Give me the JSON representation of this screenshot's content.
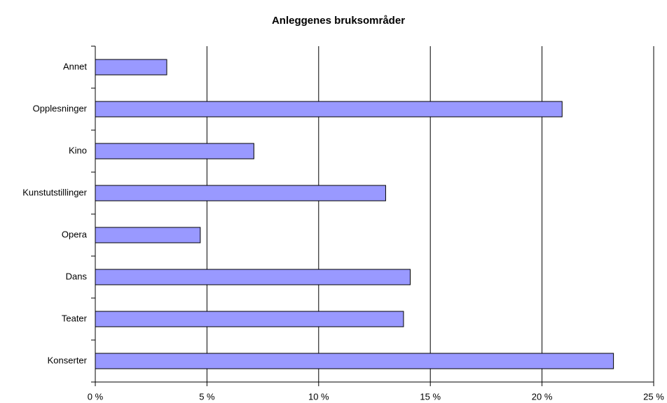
{
  "chart_data": {
    "type": "bar",
    "orientation": "horizontal",
    "title": "Anleggenes bruksområder",
    "categories": [
      "Annet",
      "Opplesninger",
      "Kino",
      "Kunstutstillinger",
      "Opera",
      "Dans",
      "Teater",
      "Konserter"
    ],
    "values": [
      3.2,
      20.9,
      7.1,
      13.0,
      4.7,
      14.1,
      13.8,
      23.2
    ],
    "color": "#9999ff",
    "xlim": [
      0,
      25
    ],
    "xticks": [
      {
        "value": 0,
        "label": "0 %"
      },
      {
        "value": 5,
        "label": "5 %"
      },
      {
        "value": 10,
        "label": "10 %"
      },
      {
        "value": 15,
        "label": "15 %"
      },
      {
        "value": 20,
        "label": "20 %"
      },
      {
        "value": 25,
        "label": "25 %"
      }
    ],
    "grid": true
  }
}
